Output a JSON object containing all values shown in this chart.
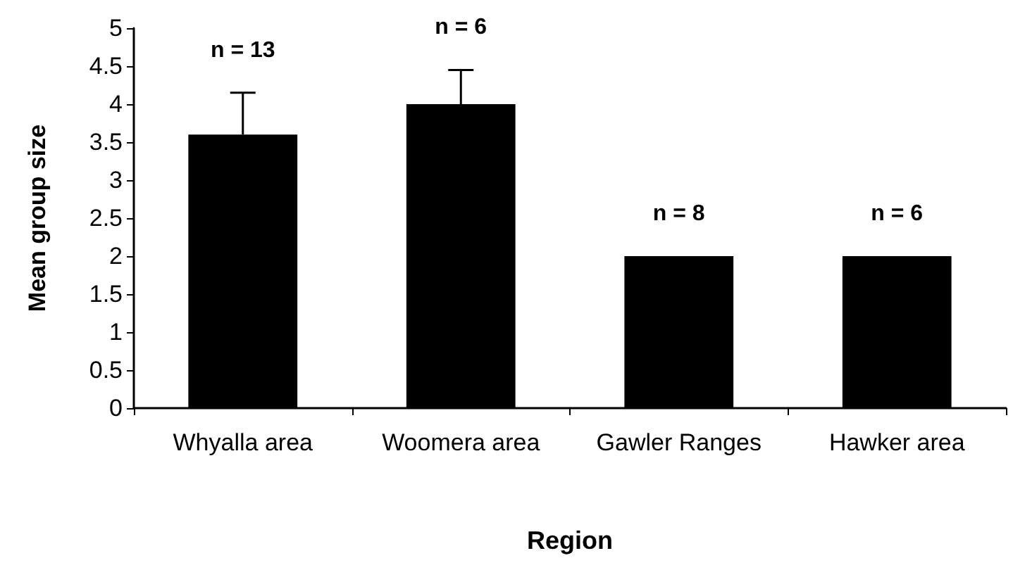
{
  "chart_data": {
    "type": "bar",
    "xlabel": "Region",
    "ylabel": "Mean group size",
    "categories": [
      "Whyalla area",
      "Woomera area",
      "Gawler Ranges",
      "Hawker area"
    ],
    "values": [
      3.6,
      4.0,
      2.0,
      2.0
    ],
    "color": "#000000",
    "errors": [
      [
        3.6,
        4.15
      ],
      [
        4.0,
        4.45
      ],
      null,
      null
    ],
    "ylim": [
      0,
      5
    ],
    "yticks": [
      0,
      0.5,
      1,
      1.5,
      2,
      2.5,
      3,
      3.5,
      4,
      4.5,
      5
    ],
    "grid": false,
    "annotations": [
      "n = 13",
      "n = 6",
      "n = 8",
      "n = 6"
    ]
  }
}
